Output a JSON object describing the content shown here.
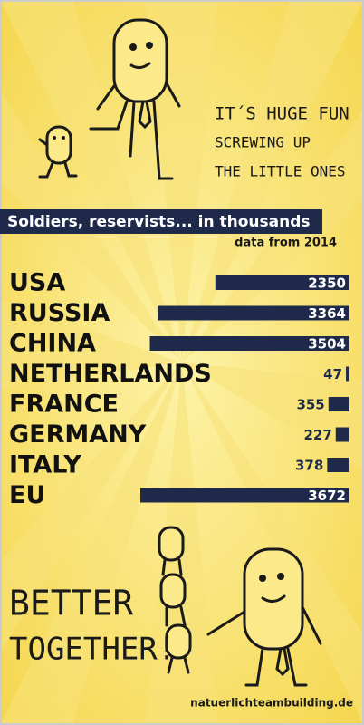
{
  "slogan_top": [
    "IT´S HUGE FUN",
    "SCREWING UP",
    "THE LITTLE ONES"
  ],
  "chart_data": {
    "type": "bar",
    "orientation": "horizontal",
    "title": "Soldiers, reservists... in thousands",
    "subtitle": "data from 2014",
    "categories": [
      "USA",
      "RUSSIA",
      "CHINA",
      "NETHERLANDS",
      "FRANCE",
      "GERMANY",
      "ITALY",
      "EU"
    ],
    "values": [
      2350,
      3364,
      3504,
      47,
      355,
      227,
      378,
      3672
    ],
    "color": "#1f2a4a"
  },
  "slogan_bottom": [
    "BETTER",
    "TOGETHER!"
  ],
  "footer": "natuerlichteambuilding.de"
}
